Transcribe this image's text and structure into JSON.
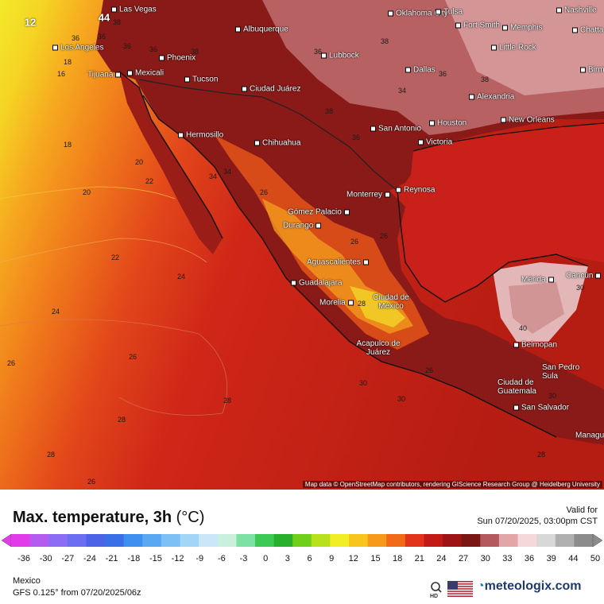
{
  "map": {
    "attribution": "Map data © OpenStreetMap contributors, rendering GIScience Research Group @ Heidelberg University",
    "cities": [
      {
        "name": "Las Vegas"
      },
      {
        "name": "Oklahoma City"
      },
      {
        "name": "Tulsa"
      },
      {
        "name": "Nashville"
      },
      {
        "name": "Chatta"
      },
      {
        "name": "Los Angeles"
      },
      {
        "name": "Albuquerque"
      },
      {
        "name": "Fort Smith"
      },
      {
        "name": "Memphis"
      },
      {
        "name": "Phoenix"
      },
      {
        "name": "Lubbock"
      },
      {
        "name": "Little Rock"
      },
      {
        "name": "Tijuana"
      },
      {
        "name": "Mexicali"
      },
      {
        "name": "Birm"
      },
      {
        "name": "Tucson"
      },
      {
        "name": "Ciudad Juárez"
      },
      {
        "name": "Dallas"
      },
      {
        "name": "Alexandria"
      },
      {
        "name": "Hermosillo"
      },
      {
        "name": "San Antonio"
      },
      {
        "name": "Houston"
      },
      {
        "name": "New Orleans"
      },
      {
        "name": "Chihuahua"
      },
      {
        "name": "Victoria"
      },
      {
        "name": "Monterrey"
      },
      {
        "name": "Reynosa"
      },
      {
        "name": "Gómez Palacio"
      },
      {
        "name": "Durango"
      },
      {
        "name": "Aguascalientes"
      },
      {
        "name": "Guadalajara"
      },
      {
        "name": "Mérida"
      },
      {
        "name": "Cancún"
      },
      {
        "name": "Morelia"
      },
      {
        "name": "Ciudad de México"
      },
      {
        "name": "Acapulco de Juárez"
      },
      {
        "name": "Belmopan"
      },
      {
        "name": "San Pedro Sula"
      },
      {
        "name": "Ciudad de Guatemala"
      },
      {
        "name": "San Salvador"
      },
      {
        "name": "Managu"
      }
    ],
    "isotherm_labels": [
      "12",
      "44",
      "36",
      "36",
      "38",
      "36",
      "18",
      "16",
      "36",
      "38",
      "36",
      "38",
      "38",
      "36",
      "34",
      "38",
      "18",
      "36",
      "34",
      "34",
      "20",
      "22",
      "20",
      "26",
      "22",
      "26",
      "24",
      "24",
      "26",
      "26",
      "28",
      "28",
      "28",
      "26",
      "26",
      "30",
      "30",
      "40",
      "30",
      "30",
      "28",
      "26",
      "28"
    ]
  },
  "legend": {
    "title": "Max. temperature, 3h",
    "unit": "(°C)",
    "ticks": [
      "-36",
      "-30",
      "-27",
      "-24",
      "-21",
      "-18",
      "-15",
      "-12",
      "-9",
      "-6",
      "-3",
      "0",
      "3",
      "6",
      "9",
      "12",
      "15",
      "18",
      "21",
      "24",
      "27",
      "30",
      "33",
      "36",
      "39",
      "44",
      "50"
    ],
    "colors": [
      "#e23be8",
      "#b55cf0",
      "#8a6cf5",
      "#6b6ef2",
      "#4b63e6",
      "#3b6fe8",
      "#3f8ff0",
      "#5aa8f2",
      "#7cc0f5",
      "#a3d5f7",
      "#cbe7f7",
      "#c9f0dc",
      "#7fe0a3",
      "#3cc956",
      "#28b02c",
      "#6fcf1a",
      "#b8e11b",
      "#f1ee23",
      "#f8c51f",
      "#f79a1c",
      "#f06a18",
      "#e2341a",
      "#c21a17",
      "#9e1414",
      "#7a1614",
      "#b45a5c",
      "#e3a6a8",
      "#f5d8da",
      "#d8d8d8",
      "#b0b0b0",
      "#8c8c8c"
    ]
  },
  "valid": {
    "label": "Valid for",
    "time": "Sun 07/20/2025, 03:00pm CST"
  },
  "footer": {
    "region": "Mexico",
    "model": "GFS 0.125° from  07/20/2025/06z",
    "brand": "meteologix.com"
  },
  "icons": {
    "hd": "hd-icon",
    "flag": "us-flag-icon"
  }
}
